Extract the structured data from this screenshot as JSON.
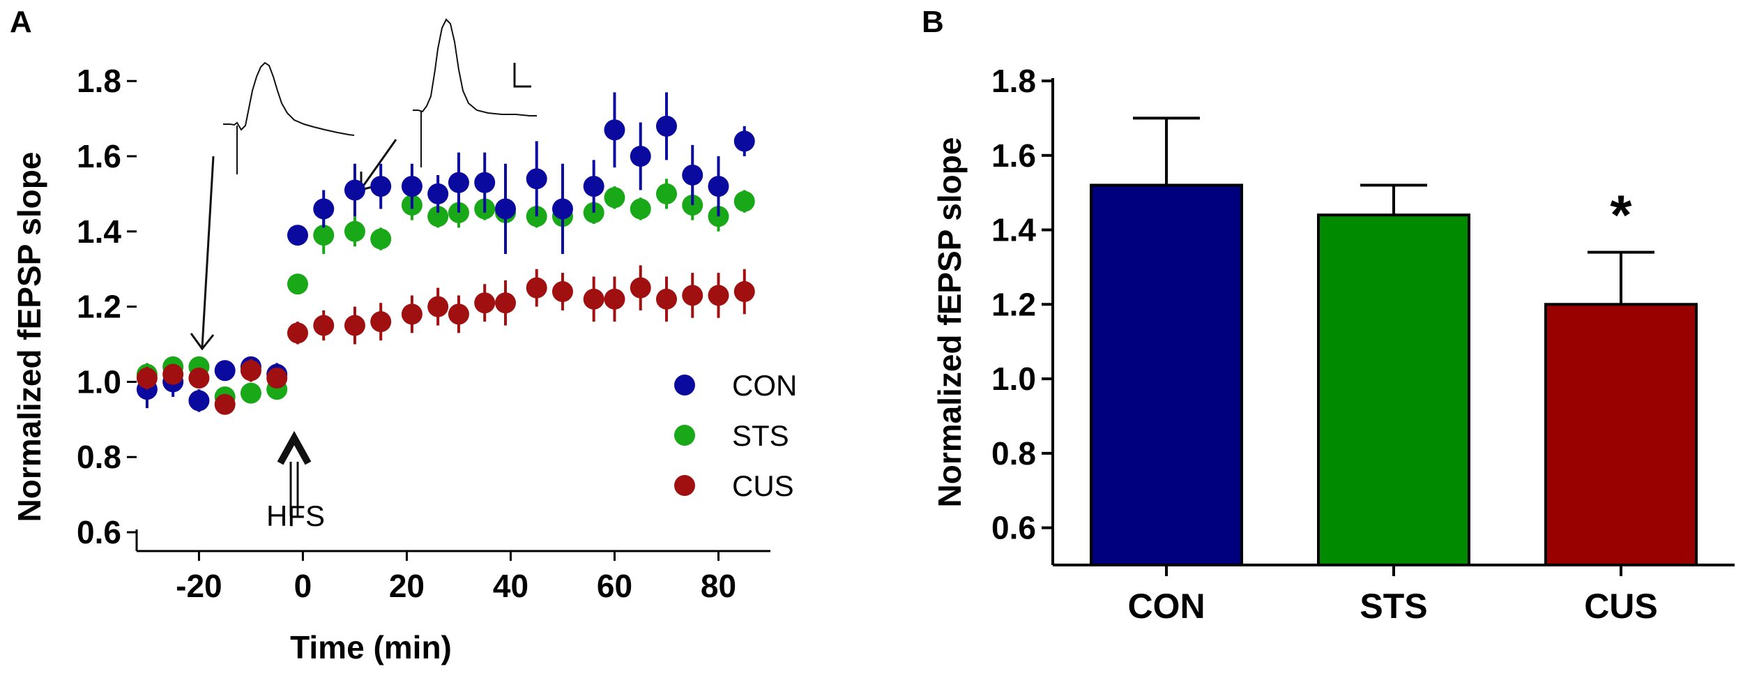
{
  "colors": {
    "con": "#0a0a9e",
    "sts": "#18a818",
    "cus": "#a01010",
    "con_bar": "#00007f",
    "sts_bar": "#008a00",
    "cus_bar": "#990000"
  },
  "chart_data": [
    {
      "panel": "A",
      "type": "scatter",
      "xlabel": "Time (min)",
      "ylabel": "Normalized fEPSP slope",
      "xlim": [
        -32,
        90
      ],
      "ylim": [
        0.55,
        1.83
      ],
      "xticks": [
        -20,
        0,
        20,
        40,
        60,
        80
      ],
      "yticks": [
        0.6,
        0.8,
        1.0,
        1.2,
        1.4,
        1.6,
        1.8
      ],
      "annotation": "HFS",
      "annotation_x": -2,
      "series": [
        {
          "name": "CON",
          "colorKey": "con",
          "x": [
            -30,
            -25,
            -20,
            -15,
            -10,
            -5,
            -1,
            4,
            10,
            15,
            21,
            26,
            30,
            35,
            39,
            45,
            50,
            56,
            60,
            65,
            70,
            75,
            80,
            85
          ],
          "y": [
            0.98,
            1.0,
            0.95,
            1.03,
            1.04,
            1.02,
            1.39,
            1.46,
            1.51,
            1.52,
            1.52,
            1.5,
            1.53,
            1.53,
            1.46,
            1.54,
            1.46,
            1.52,
            1.67,
            1.6,
            1.68,
            1.55,
            1.52,
            1.64
          ],
          "err": [
            0.05,
            0.04,
            0.03,
            0.02,
            0.02,
            0.03,
            0.02,
            0.05,
            0.07,
            0.06,
            0.06,
            0.05,
            0.08,
            0.08,
            0.12,
            0.1,
            0.12,
            0.07,
            0.1,
            0.09,
            0.09,
            0.08,
            0.08,
            0.04
          ]
        },
        {
          "name": "STS",
          "colorKey": "sts",
          "x": [
            -30,
            -25,
            -20,
            -15,
            -10,
            -5,
            -1,
            4,
            10,
            15,
            21,
            26,
            30,
            35,
            39,
            45,
            50,
            56,
            60,
            65,
            70,
            75,
            80,
            85
          ],
          "y": [
            1.02,
            1.04,
            1.04,
            0.96,
            0.97,
            0.98,
            1.26,
            1.39,
            1.4,
            1.38,
            1.47,
            1.44,
            1.45,
            1.46,
            1.45,
            1.44,
            1.44,
            1.45,
            1.49,
            1.46,
            1.5,
            1.47,
            1.44,
            1.48
          ],
          "err": [
            0.03,
            0.02,
            0.02,
            0.02,
            0.02,
            0.02,
            0.02,
            0.05,
            0.04,
            0.03,
            0.04,
            0.03,
            0.04,
            0.03,
            0.03,
            0.03,
            0.04,
            0.03,
            0.03,
            0.03,
            0.04,
            0.04,
            0.04,
            0.03
          ]
        },
        {
          "name": "CUS",
          "colorKey": "cus",
          "x": [
            -30,
            -25,
            -20,
            -15,
            -10,
            -5,
            -1,
            4,
            10,
            15,
            21,
            26,
            30,
            35,
            39,
            45,
            50,
            56,
            60,
            65,
            70,
            75,
            80,
            85
          ],
          "y": [
            1.01,
            1.02,
            1.01,
            0.94,
            1.03,
            1.01,
            1.13,
            1.15,
            1.15,
            1.16,
            1.18,
            1.2,
            1.18,
            1.21,
            1.21,
            1.25,
            1.24,
            1.22,
            1.22,
            1.25,
            1.22,
            1.23,
            1.23,
            1.24
          ]
        }
      ],
      "cus_err": [
        0.03,
        0.02,
        0.02,
        0.02,
        0.03,
        0.02,
        0.03,
        0.04,
        0.05,
        0.05,
        0.05,
        0.05,
        0.05,
        0.05,
        0.06,
        0.05,
        0.05,
        0.06,
        0.06,
        0.06,
        0.06,
        0.06,
        0.06,
        0.06
      ],
      "legend": [
        "CON",
        "STS",
        "CUS"
      ]
    },
    {
      "panel": "B",
      "type": "bar",
      "ylabel": "Normalized fEPSP slope",
      "ylim": [
        0.5,
        1.83
      ],
      "yticks": [
        0.6,
        0.8,
        1.0,
        1.2,
        1.4,
        1.6,
        1.8
      ],
      "categories": [
        "CON",
        "STS",
        "CUS"
      ],
      "values": [
        1.52,
        1.44,
        1.2
      ],
      "errors": [
        0.18,
        0.08,
        0.14
      ],
      "significance": [
        "",
        "",
        "*"
      ]
    }
  ]
}
